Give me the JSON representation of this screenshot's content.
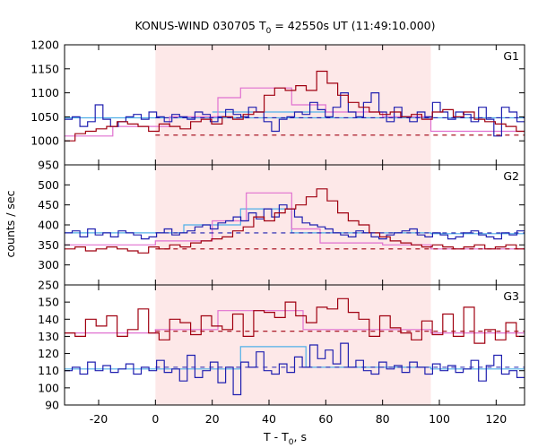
{
  "chart_data": {
    "type": "line",
    "title_main": "KONUS-WIND 030705 T",
    "title_sub": "0",
    "title_rest": " = 42550s UT (11:49:10.000)",
    "xlabel_main": "T - T",
    "xlabel_sub": "0",
    "xlabel_rest": ", s",
    "ylabel": "counts / sec",
    "xlim": [
      -32,
      130
    ],
    "xticks": [
      -20,
      0,
      20,
      40,
      60,
      80,
      100,
      120
    ],
    "shaded_interval": [
      0,
      97
    ],
    "colors": {
      "shade": "#fde8e8",
      "red_series": "#a00010",
      "blue_series": "#2020b0",
      "pink_series": "#e070d0",
      "cyan_series": "#50b0e8"
    },
    "panels": [
      {
        "name": "G1",
        "ylim": [
          950,
          1200
        ],
        "yticks": [
          950,
          1000,
          1050,
          1100,
          1150,
          1200
        ],
        "red_background": 1012,
        "blue_background": 1048,
        "red_x_start": -32,
        "red_step": 3.7,
        "red_y": [
          1000,
          1015,
          1020,
          1025,
          1030,
          1040,
          1035,
          1030,
          1020,
          1035,
          1030,
          1025,
          1040,
          1045,
          1035,
          1050,
          1045,
          1055,
          1060,
          1095,
          1110,
          1105,
          1115,
          1105,
          1145,
          1120,
          1095,
          1080,
          1070,
          1060,
          1055,
          1060,
          1050,
          1055,
          1045,
          1060,
          1065,
          1050,
          1060,
          1045,
          1040,
          1035,
          1030,
          1020,
          1025,
          1015,
          1010,
          1000,
          1005,
          1010,
          1015,
          1010,
          1010
        ],
        "blue_x_start": -32,
        "blue_step": 2.7,
        "blue_y": [
          1045,
          1050,
          1030,
          1040,
          1075,
          1045,
          1030,
          1040,
          1050,
          1055,
          1045,
          1060,
          1050,
          1040,
          1055,
          1050,
          1045,
          1060,
          1055,
          1040,
          1050,
          1065,
          1055,
          1050,
          1070,
          1060,
          1040,
          1020,
          1045,
          1050,
          1060,
          1055,
          1080,
          1065,
          1050,
          1070,
          1100,
          1060,
          1050,
          1080,
          1100,
          1060,
          1040,
          1070,
          1050,
          1040,
          1060,
          1050,
          1080,
          1060,
          1045,
          1060,
          1055,
          1040,
          1070,
          1045,
          1010,
          1070,
          1060,
          1040,
          1030,
          1060,
          1050
        ],
        "pink_steps": [
          [
            -32,
            -15,
            1010
          ],
          [
            -15,
            5,
            1030
          ],
          [
            5,
            22,
            1050
          ],
          [
            22,
            30,
            1090
          ],
          [
            30,
            48,
            1110
          ],
          [
            48,
            60,
            1075
          ],
          [
            60,
            80,
            1060
          ],
          [
            80,
            97,
            1050
          ],
          [
            97,
            130,
            1020
          ]
        ],
        "cyan_steps": [
          [
            -32,
            130,
            1048
          ],
          [
            20,
            60,
            1060
          ]
        ]
      },
      {
        "name": "G2",
        "ylim": [
          250,
          550
        ],
        "yticks": [
          250,
          300,
          350,
          400,
          450,
          500
        ],
        "red_background": 340,
        "blue_background": 380,
        "red_x_start": -32,
        "red_step": 3.7,
        "red_y": [
          340,
          345,
          335,
          340,
          345,
          340,
          335,
          330,
          345,
          340,
          350,
          345,
          355,
          360,
          365,
          370,
          385,
          395,
          420,
          410,
          430,
          440,
          450,
          470,
          490,
          460,
          430,
          410,
          400,
          380,
          370,
          360,
          355,
          350,
          345,
          350,
          345,
          340,
          345,
          350,
          340,
          345,
          350,
          340,
          345,
          355,
          340,
          335,
          345,
          340,
          335,
          345,
          340
        ],
        "blue_x_start": -32,
        "blue_step": 2.7,
        "blue_y": [
          380,
          385,
          370,
          390,
          375,
          380,
          370,
          385,
          380,
          375,
          365,
          370,
          380,
          390,
          375,
          380,
          385,
          395,
          400,
          390,
          405,
          410,
          420,
          410,
          430,
          415,
          440,
          420,
          450,
          440,
          420,
          405,
          400,
          395,
          390,
          380,
          375,
          370,
          385,
          380,
          370,
          365,
          375,
          380,
          385,
          390,
          375,
          370,
          380,
          375,
          365,
          370,
          380,
          385,
          375,
          370,
          365,
          380,
          375,
          385,
          380,
          370,
          375
        ],
        "pink_steps": [
          [
            -32,
            0,
            350
          ],
          [
            0,
            20,
            360
          ],
          [
            20,
            32,
            410
          ],
          [
            32,
            48,
            480
          ],
          [
            48,
            58,
            390
          ],
          [
            58,
            80,
            355
          ],
          [
            80,
            97,
            350
          ],
          [
            97,
            130,
            340
          ]
        ],
        "cyan_steps": [
          [
            -32,
            10,
            380
          ],
          [
            10,
            30,
            400
          ],
          [
            30,
            48,
            440
          ],
          [
            48,
            97,
            380
          ],
          [
            97,
            130,
            378
          ]
        ]
      },
      {
        "name": "G3",
        "ylim": [
          90,
          160
        ],
        "yticks": [
          90,
          100,
          110,
          120,
          130,
          140,
          150
        ],
        "red_background": 133,
        "blue_background": 112,
        "red_x_start": -32,
        "red_step": 3.7,
        "red_y": [
          132,
          130,
          140,
          136,
          142,
          130,
          134,
          146,
          132,
          128,
          140,
          138,
          131,
          142,
          136,
          134,
          143,
          130,
          145,
          144,
          141,
          150,
          142,
          138,
          147,
          146,
          152,
          144,
          140,
          130,
          142,
          135,
          132,
          128,
          139,
          131,
          143,
          130,
          147,
          126,
          134,
          128,
          138,
          130,
          142,
          129,
          134,
          137,
          131,
          128,
          136,
          133,
          130
        ],
        "blue_x_start": -32,
        "blue_step": 2.7,
        "blue_y": [
          110,
          112,
          108,
          115,
          110,
          113,
          109,
          111,
          114,
          108,
          112,
          110,
          116,
          109,
          111,
          104,
          119,
          106,
          110,
          115,
          103,
          112,
          96,
          115,
          112,
          121,
          110,
          108,
          114,
          109,
          118,
          112,
          125,
          117,
          122,
          114,
          126,
          112,
          116,
          110,
          108,
          115,
          111,
          113,
          109,
          115,
          112,
          108,
          114,
          110,
          113,
          109,
          111,
          116,
          104,
          113,
          119,
          108,
          110,
          106,
          114,
          110,
          120
        ],
        "pink_steps": [
          [
            -32,
            0,
            132
          ],
          [
            0,
            22,
            134
          ],
          [
            22,
            52,
            145
          ],
          [
            52,
            97,
            134
          ],
          [
            97,
            130,
            132
          ]
        ],
        "cyan_steps": [
          [
            -32,
            30,
            111
          ],
          [
            30,
            53,
            124
          ],
          [
            53,
            97,
            112
          ],
          [
            97,
            130,
            111
          ]
        ]
      }
    ]
  }
}
